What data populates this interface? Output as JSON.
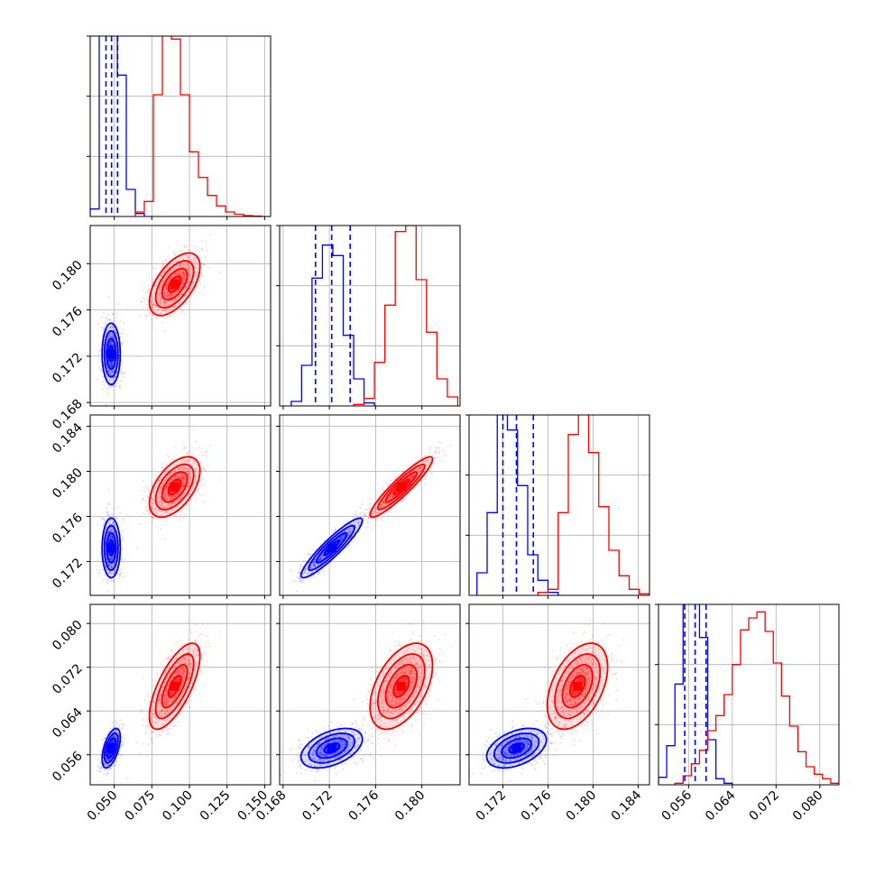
{
  "chart_data": {
    "type": "corner",
    "grid": true,
    "colors": {
      "blue": "#0000ff",
      "red": "#ff0000"
    },
    "parameters": [
      {
        "range": [
          0.034,
          0.154
        ],
        "ticks": [
          0.05,
          0.075,
          0.1,
          0.125,
          0.15
        ],
        "tick_labels": [
          "0.050",
          "0.075",
          "0.100",
          "0.125",
          "0.150"
        ]
      },
      {
        "range": [
          0.1677,
          0.1833
        ],
        "ticks": [
          0.168,
          0.172,
          0.176,
          0.18
        ],
        "tick_labels": [
          "0.168",
          "0.172",
          "0.176",
          "0.180"
        ]
      },
      {
        "range": [
          0.169,
          0.185
        ],
        "ticks": [
          0.172,
          0.176,
          0.18,
          0.184
        ],
        "tick_labels": [
          "0.172",
          "0.176",
          "0.180",
          "0.184"
        ]
      },
      {
        "range": [
          0.0505,
          0.0835
        ],
        "ticks": [
          0.056,
          0.064,
          0.072,
          0.08
        ],
        "tick_labels": [
          "0.056",
          "0.064",
          "0.072",
          "0.080"
        ]
      }
    ],
    "samples": {
      "blue": {
        "mean": [
          0.048,
          0.1722,
          0.1732,
          0.0572
        ],
        "std": [
          0.003,
          0.0013,
          0.0013,
          0.0018
        ],
        "quantiles": [
          [
            0.0445,
            0.0482,
            0.0522
          ],
          [
            0.1708,
            0.1722,
            0.1738
          ],
          [
            0.172,
            0.1732,
            0.1747
          ],
          [
            0.0553,
            0.0572,
            0.0592
          ]
        ]
      },
      "red": {
        "mean": [
          0.089,
          0.1782,
          0.1786,
          0.0685
        ],
        "std": [
          0.008,
          0.0013,
          0.0013,
          0.0038
        ]
      }
    },
    "histograms": [
      {
        "blue": {
          "edges": [
            0.034,
            0.04,
            0.046,
            0.052,
            0.058,
            0.064,
            0.07
          ],
          "counts": [
            0.05,
            1.4,
            1.4,
            0.94,
            0.18,
            0.02
          ],
          "clip": 1.05
        },
        "red": {
          "edges": [
            0.064,
            0.07,
            0.076,
            0.082,
            0.088,
            0.094,
            0.1,
            0.106,
            0.112,
            0.118,
            0.124,
            0.13,
            0.136,
            0.142,
            0.148
          ],
          "counts": [
            0.03,
            0.1,
            0.81,
            1.21,
            1.18,
            0.81,
            0.43,
            0.26,
            0.14,
            0.07,
            0.03,
            0.015,
            0.006,
            0.003
          ]
        }
      },
      {
        "blue": {
          "edges": [
            0.1687,
            0.1696,
            0.1705,
            0.1714,
            0.1723,
            0.1732,
            0.1741,
            0.175,
            0.1759
          ],
          "counts": [
            0.03,
            0.27,
            0.85,
            1.07,
            1.0,
            0.47,
            0.18,
            0.02
          ]
        },
        "red": {
          "edges": [
            0.1741,
            0.175,
            0.1759,
            0.1768,
            0.1777,
            0.1786,
            0.1795,
            0.1804,
            0.1813,
            0.1822,
            0.1831
          ],
          "counts": [
            0.01,
            0.05,
            0.29,
            0.67,
            1.16,
            1.2,
            0.84,
            0.49,
            0.18,
            0.06
          ]
        }
      },
      {
        "blue": {
          "edges": [
            0.1697,
            0.1706,
            0.1715,
            0.1724,
            0.1733,
            0.1742,
            0.1751,
            0.176,
            0.1769
          ],
          "counts": [
            0.15,
            0.55,
            1.24,
            1.1,
            0.73,
            0.27,
            0.1,
            0.02
          ]
        },
        "red": {
          "edges": [
            0.1751,
            0.176,
            0.1769,
            0.1778,
            0.1787,
            0.1796,
            0.1805,
            0.1814,
            0.1823,
            0.1832,
            0.1841,
            0.185
          ],
          "counts": [
            0.02,
            0.04,
            0.55,
            1.07,
            1.21,
            0.95,
            0.59,
            0.3,
            0.13,
            0.04,
            0.01
          ]
        }
      },
      {
        "blue": {
          "edges": [
            0.0505,
            0.052,
            0.0535,
            0.055,
            0.0565,
            0.058,
            0.0595,
            0.061,
            0.0625,
            0.064
          ],
          "counts": [
            0.05,
            0.26,
            0.67,
            1.33,
            1.24,
            0.98,
            0.3,
            0.04,
            0.01
          ]
        },
        "red": {
          "edges": [
            0.0535,
            0.055,
            0.0565,
            0.058,
            0.0595,
            0.061,
            0.0625,
            0.064,
            0.0655,
            0.067,
            0.0685,
            0.07,
            0.0715,
            0.073,
            0.0745,
            0.076,
            0.0775,
            0.079,
            0.0805,
            0.082,
            0.0835
          ],
          "counts": [
            0.01,
            0.06,
            0.14,
            0.23,
            0.36,
            0.46,
            0.6,
            0.8,
            1.03,
            1.11,
            1.15,
            1.02,
            0.81,
            0.59,
            0.39,
            0.22,
            0.12,
            0.07,
            0.04,
            0.01
          ]
        }
      }
    ],
    "histogram_ymax": 1.2,
    "histogram_yticks": [
      0.4,
      0.8,
      1.2
    ]
  }
}
